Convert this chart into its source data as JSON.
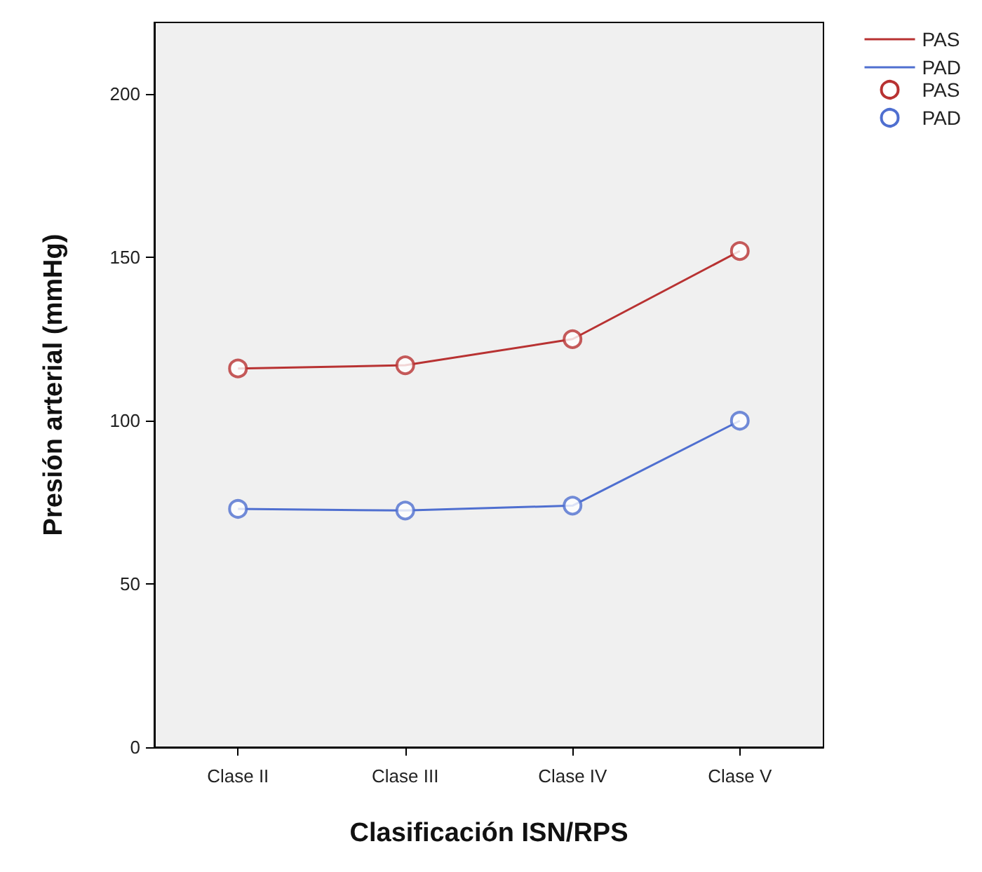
{
  "chart_data": {
    "type": "line",
    "xlabel": "Clasificación ISN/RPS",
    "ylabel": "Presión arterial (mmHg)",
    "categories": [
      "Clase II",
      "Clase III",
      "Clase IV",
      "Clase V"
    ],
    "series": [
      {
        "name": "PAS",
        "color": "#b83232",
        "values": [
          116,
          117,
          125,
          152
        ],
        "marker": "none"
      },
      {
        "name": "PAD",
        "color": "#4f6fd0",
        "values": [
          73,
          72.5,
          74,
          100
        ],
        "marker": "none"
      },
      {
        "name": "PAS",
        "color": "#b83232",
        "values": [
          116,
          117,
          125,
          152
        ],
        "type": "scatter",
        "marker": "circle"
      },
      {
        "name": "PAD",
        "color": "#4f6fd0",
        "values": [
          73,
          72.5,
          74,
          100
        ],
        "type": "scatter",
        "marker": "circle"
      }
    ],
    "ylim": [
      0,
      222
    ],
    "yticks": [
      0,
      50,
      100,
      150,
      200
    ],
    "grid": false,
    "legend": "top right"
  }
}
